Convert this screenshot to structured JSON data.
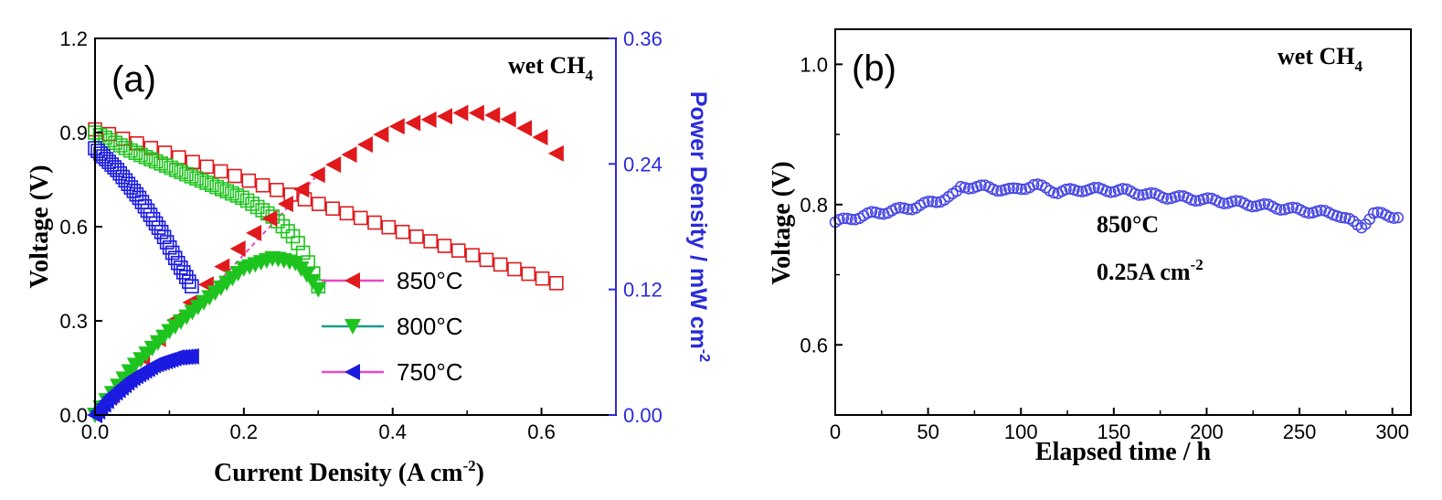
{
  "chart_data": [
    {
      "type": "line",
      "panel_label": "(a)",
      "annotation": "wet CH",
      "annotation_sub": "4",
      "xlabel": "Current Density (A cm",
      "xlabel_sup": "-2",
      "xlabel_close": ")",
      "ylabel": "Voltage (V)",
      "y2label": "Power Density / mW cm",
      "y2label_sup": "-2",
      "xlim": [
        0,
        0.7
      ],
      "ylim": [
        0,
        1.2
      ],
      "y2lim": [
        0,
        0.36
      ],
      "xticks": [
        "0.0",
        "0.2",
        "0.4",
        "0.6"
      ],
      "yticks": [
        "0.0",
        "0.3",
        "0.6",
        "0.9",
        "1.2"
      ],
      "y2ticks": [
        "0.00",
        "0.12",
        "0.24",
        "0.36"
      ],
      "legend": [
        {
          "label": "850°C",
          "color": "#e0191c",
          "line": "#e64ac2"
        },
        {
          "label": "800°C",
          "color": "#1ec41e",
          "line": "#1c9a8c"
        },
        {
          "label": "750°C",
          "color": "#1a1ae0",
          "line": "#e64ac2"
        }
      ],
      "series": [
        {
          "name": "850°C voltage",
          "axis": "left",
          "color": "#e0191c",
          "marker": "square-open",
          "x": [
            0.0,
            0.62
          ],
          "y": [
            0.91,
            0.42
          ],
          "n": 34
        },
        {
          "name": "800°C voltage",
          "axis": "left",
          "color": "#1ec41e",
          "marker": "square-open",
          "x": [
            0.0,
            0.05,
            0.1,
            0.15,
            0.2,
            0.24,
            0.27,
            0.29,
            0.3
          ],
          "y": [
            0.9,
            0.84,
            0.79,
            0.74,
            0.69,
            0.63,
            0.56,
            0.47,
            0.41
          ],
          "n": 45
        },
        {
          "name": "750°C voltage",
          "axis": "left",
          "color": "#1a1ae0",
          "marker": "square-open",
          "x": [
            0.0,
            0.03,
            0.06,
            0.09,
            0.11,
            0.13
          ],
          "y": [
            0.85,
            0.78,
            0.69,
            0.58,
            0.49,
            0.41
          ],
          "n": 36
        },
        {
          "name": "850°C power",
          "axis": "right",
          "color": "#e0191c",
          "marker": "triangle-left",
          "x": [
            0.0,
            0.1,
            0.2,
            0.3,
            0.4,
            0.5,
            0.55,
            0.6,
            0.62
          ],
          "y": [
            0.0,
            0.085,
            0.165,
            0.23,
            0.275,
            0.29,
            0.285,
            0.265,
            0.25
          ],
          "n": 30
        },
        {
          "name": "800°C power",
          "axis": "right",
          "color": "#1ec41e",
          "marker": "triangle-down",
          "x": [
            0.0,
            0.05,
            0.1,
            0.15,
            0.2,
            0.24,
            0.27,
            0.29,
            0.3
          ],
          "y": [
            0.0,
            0.045,
            0.08,
            0.11,
            0.14,
            0.15,
            0.145,
            0.13,
            0.12
          ],
          "n": 40
        },
        {
          "name": "750°C power",
          "axis": "right",
          "color": "#1a1ae0",
          "marker": "triangle-left",
          "x": [
            0.0,
            0.02,
            0.05,
            0.08,
            0.11,
            0.13
          ],
          "y": [
            0.0,
            0.017,
            0.035,
            0.048,
            0.055,
            0.056
          ],
          "n": 34
        }
      ]
    },
    {
      "type": "scatter",
      "panel_label": "(b)",
      "annotation": "wet CH",
      "annotation_sub": "4",
      "note_temp": "850°C",
      "note_current": "0.25A cm",
      "note_current_sup": "-2",
      "xlabel": "Elapsed time / h",
      "ylabel": "Voltage (V)",
      "xlim": [
        0,
        310
      ],
      "ylim": [
        0.5,
        1.05
      ],
      "xticks": [
        "0",
        "50",
        "100",
        "150",
        "200",
        "250",
        "300"
      ],
      "yticks": [
        "0.6",
        "0.8",
        "1.0"
      ],
      "series": [
        {
          "name": "850°C, 0.25 A cm-2",
          "color": "#4a4ae6",
          "marker": "circle-open",
          "x": [
            0,
            20,
            40,
            55,
            65,
            68,
            80,
            95,
            107,
            120,
            135,
            155,
            175,
            195,
            215,
            235,
            250,
            270,
            283,
            290,
            303
          ],
          "y": [
            0.775,
            0.787,
            0.795,
            0.805,
            0.815,
            0.826,
            0.825,
            0.82,
            0.828,
            0.818,
            0.822,
            0.82,
            0.812,
            0.808,
            0.803,
            0.797,
            0.792,
            0.787,
            0.768,
            0.787,
            0.783
          ],
          "n": 140
        }
      ]
    }
  ]
}
